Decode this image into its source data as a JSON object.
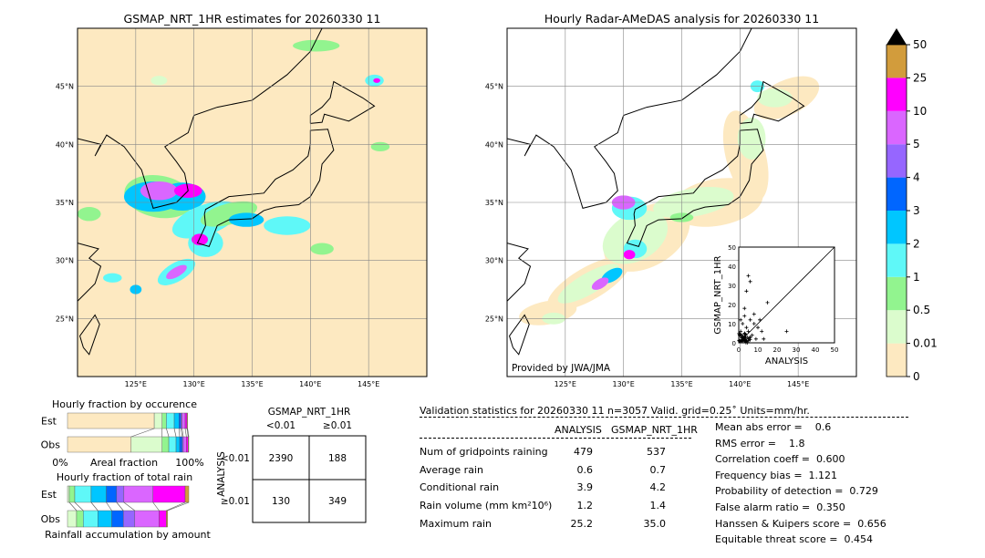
{
  "chart_data": [
    {
      "type": "heatmap",
      "title": "GSMAP_NRT_1HR estimates for 20260330 11",
      "lon_range": [
        120,
        150
      ],
      "lat_range": [
        20,
        50
      ],
      "x_ticks": [
        "125°E",
        "130°E",
        "135°E",
        "140°E",
        "145°E"
      ],
      "y_ticks": [
        "45°N",
        "40°N",
        "35°N",
        "30°N",
        "25°N"
      ],
      "grid": true
    },
    {
      "type": "heatmap",
      "title": "Hourly Radar-AMeDAS analysis for 20260330 11",
      "lon_range": [
        120,
        150
      ],
      "lat_range": [
        20,
        50
      ],
      "x_ticks": [
        "125°E",
        "130°E",
        "135°E",
        "140°E",
        "145°E"
      ],
      "y_ticks": [
        "45°N",
        "40°N",
        "35°N",
        "30°N",
        "25°N"
      ],
      "grid": true,
      "annotation": "Provided by JWA/JMA"
    },
    {
      "type": "scatter",
      "xlabel": "ANALYSIS",
      "ylabel": "GSMAP_NRT_1HR",
      "xlim": [
        0,
        50
      ],
      "ylim": [
        0,
        50
      ],
      "ticks": [
        "0",
        "10",
        "20",
        "30",
        "40",
        "50"
      ],
      "points": [
        [
          1,
          1
        ],
        [
          2,
          3
        ],
        [
          3,
          5
        ],
        [
          4,
          8
        ],
        [
          5,
          2
        ],
        [
          2,
          10
        ],
        [
          6,
          12
        ],
        [
          3,
          14
        ],
        [
          5,
          35
        ],
        [
          6,
          32
        ],
        [
          4,
          27
        ],
        [
          8,
          15
        ],
        [
          10,
          8
        ],
        [
          12,
          6
        ],
        [
          15,
          21
        ],
        [
          25,
          6
        ],
        [
          7,
          4
        ],
        [
          9,
          2
        ],
        [
          1,
          6
        ],
        [
          3,
          3
        ],
        [
          2,
          1
        ],
        [
          4,
          1
        ],
        [
          5,
          6
        ],
        [
          6,
          3
        ],
        [
          8,
          10
        ],
        [
          11,
          12
        ],
        [
          3,
          18
        ],
        [
          1,
          12
        ],
        [
          0.5,
          4
        ],
        [
          13,
          2
        ]
      ]
    },
    {
      "type": "bar",
      "title": "Hourly fraction by occurence",
      "xlabel": "Areal fraction",
      "categories": [
        "Est",
        "Obs"
      ],
      "x_tick_labels": [
        "0%",
        "100%"
      ],
      "series_bins": [
        "0-0.01",
        "0.01-0.5",
        "0.5-1",
        "1-2",
        "2-3",
        "3-4",
        "4-5",
        "5-10",
        "10-25",
        "25-50"
      ],
      "values_percent": {
        "Est": [
          71.5,
          6.5,
          3.5,
          6.5,
          4,
          1.5,
          1,
          2.5,
          1.5,
          0.5
        ],
        "Obs": [
          52.5,
          25.5,
          5.5,
          6,
          3,
          2,
          1,
          2.5,
          1.5,
          0.5
        ]
      }
    },
    {
      "type": "bar",
      "title": "Hourly fraction of total rain",
      "xlabel": "Rainfall accumulation by amount",
      "categories": [
        "Est",
        "Obs"
      ],
      "values_percent": {
        "Est": [
          1.5,
          4.5,
          13.5,
          12.5,
          8.5,
          6,
          24,
          26.5,
          3
        ],
        "Obs": [
          7.5,
          5.5,
          12,
          11.5,
          9.5,
          9.5,
          20,
          6,
          1
        ]
      }
    },
    {
      "type": "table",
      "title": "GSMAP_NRT_1HR",
      "col_headers": [
        "<0.01",
        "≥0.01"
      ],
      "row_label": "ANALYSIS",
      "row_headers": [
        "<0.01",
        "≥0.01"
      ],
      "cells": [
        [
          "2390",
          "188"
        ],
        [
          "130",
          "349"
        ]
      ]
    }
  ],
  "colorbar": {
    "labels": [
      "0",
      "0.01",
      "0.5",
      "1",
      "2",
      "3",
      "4",
      "5",
      "10",
      "25",
      "50"
    ],
    "colors": [
      "#fde9c1",
      "#dbfccd",
      "#92f48f",
      "#5ff8f8",
      "#00c6ff",
      "#0066ff",
      "#9666ff",
      "#da66ff",
      "#ff00ff",
      "#d29c3c"
    ],
    "extend_color": "#000000"
  },
  "stats": {
    "header": "Validation statistics for 20260330 11  n=3057 Valid. grid=0.25˚ Units=mm/hr.",
    "col_analysis": "ANALYSIS",
    "col_gsmap": "GSMAP_NRT_1HR",
    "rows": [
      {
        "label": "Num of gridpoints raining",
        "a": "479",
        "g": "537"
      },
      {
        "label": "Average rain",
        "a": "0.6",
        "g": "0.7"
      },
      {
        "label": "Conditional rain",
        "a": "3.9",
        "g": "4.2"
      },
      {
        "label": "Rain volume (mm km²10⁶)",
        "a": "1.2",
        "g": "1.4"
      },
      {
        "label": "Maximum rain",
        "a": "25.2",
        "g": "35.0"
      }
    ],
    "scores": [
      "Mean abs error =    0.6",
      "RMS error =    1.8",
      "Correlation coeff =  0.600",
      "Frequency bias =  1.121",
      "Probability of detection =  0.729",
      "False alarm ratio =  0.350",
      "Hanssen & Kuipers score =  0.656",
      "Equitable threat score =  0.454"
    ]
  }
}
